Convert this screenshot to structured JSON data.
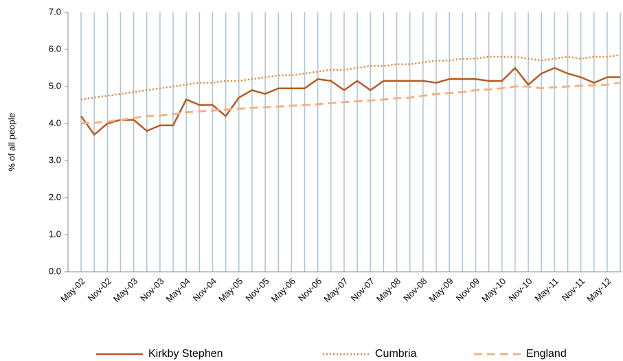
{
  "chart_data": {
    "type": "line",
    "y_label": "% of all people",
    "categories": [
      "May-02",
      null,
      "Nov-02",
      null,
      "May-03",
      null,
      "Nov-03",
      null,
      "May-04",
      null,
      "Nov-04",
      null,
      "May-05",
      null,
      "Nov-05",
      null,
      "May-06",
      null,
      "Nov-06",
      null,
      "May-07",
      null,
      "Nov-07",
      null,
      "May-08",
      null,
      "Nov-08",
      null,
      "May-09",
      null,
      "Nov-09",
      null,
      "May-10",
      null,
      "Nov-10",
      null,
      "May-11",
      null,
      "Nov-11",
      null,
      "May-12",
      null
    ],
    "series": [
      {
        "name": "Kirkby Stephen",
        "color": "#b85a1f",
        "dash": "solid",
        "values": [
          4.2,
          3.7,
          4.0,
          4.1,
          4.1,
          3.8,
          3.95,
          3.95,
          4.65,
          4.5,
          4.5,
          4.2,
          4.7,
          4.9,
          4.8,
          4.95,
          4.95,
          4.95,
          5.2,
          5.15,
          4.9,
          5.15,
          4.9,
          5.15,
          5.15,
          5.15,
          5.15,
          5.1,
          5.2,
          5.2,
          5.2,
          5.15,
          5.15,
          5.5,
          5.05,
          5.35,
          5.5,
          5.35,
          5.25,
          5.1,
          5.25,
          5.25
        ]
      },
      {
        "name": "Cumbria",
        "color": "#e8822a",
        "dash": "dotted",
        "values": [
          4.65,
          4.7,
          4.75,
          4.8,
          4.85,
          4.9,
          4.95,
          5.0,
          5.05,
          5.1,
          5.1,
          5.15,
          5.15,
          5.2,
          5.25,
          5.3,
          5.3,
          5.35,
          5.4,
          5.45,
          5.45,
          5.5,
          5.55,
          5.55,
          5.6,
          5.6,
          5.65,
          5.7,
          5.7,
          5.75,
          5.75,
          5.8,
          5.8,
          5.8,
          5.75,
          5.7,
          5.75,
          5.8,
          5.75,
          5.8,
          5.8,
          5.85
        ]
      },
      {
        "name": "England",
        "color": "#f4b183",
        "dash": "dashed",
        "values": [
          4.0,
          4.02,
          4.05,
          4.1,
          4.15,
          4.2,
          4.22,
          4.25,
          4.3,
          4.33,
          4.35,
          4.38,
          4.4,
          4.42,
          4.44,
          4.46,
          4.48,
          4.5,
          4.52,
          4.55,
          4.58,
          4.6,
          4.62,
          4.65,
          4.68,
          4.7,
          4.75,
          4.8,
          4.82,
          4.85,
          4.9,
          4.92,
          4.95,
          5.0,
          5.0,
          4.95,
          4.98,
          5.0,
          5.02,
          5.03,
          5.05,
          5.1
        ]
      }
    ],
    "ylim": [
      0,
      7
    ],
    "yticks": [
      {
        "value": 0,
        "label": "0.0"
      },
      {
        "value": 1,
        "label": "1.0"
      },
      {
        "value": 2,
        "label": "2.0"
      },
      {
        "value": 3,
        "label": "3.0"
      },
      {
        "value": 4,
        "label": "4.0"
      },
      {
        "value": 5,
        "label": "5.0"
      },
      {
        "value": 6,
        "label": "6.0"
      },
      {
        "value": 7,
        "label": "7.0"
      }
    ],
    "grid": true,
    "legend": "bottom"
  }
}
